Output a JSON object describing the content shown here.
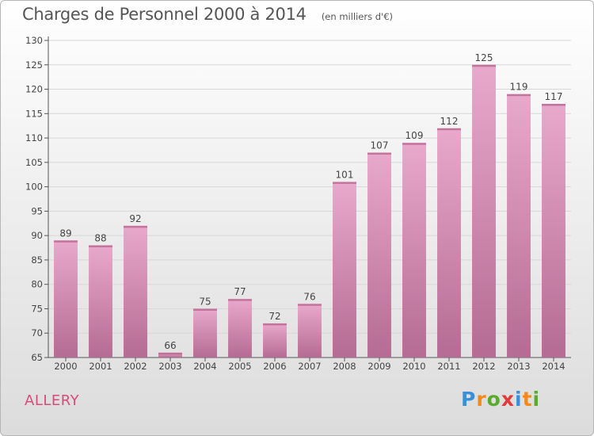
{
  "header": {
    "title": "Charges de Personnel 2000 à 2014",
    "subtitle": "(en milliers d'€)"
  },
  "commune": "ALLERY",
  "logo": {
    "text": "Proxiti",
    "letter_colors": [
      "#3b8fd6",
      "#f08a1c",
      "#5aaa2e",
      "#e23a3a",
      "#3b8fd6",
      "#f08a1c",
      "#5aaa2e"
    ]
  },
  "colors": {
    "bar_top": "#e8a9cc",
    "bar_bottom": "#b56b93",
    "axis": "#555555",
    "grid": "#d7d7d7",
    "commune": "#d94a7b"
  },
  "chart_data": {
    "type": "bar",
    "title": "Charges de Personnel 2000 à 2014",
    "subtitle": "(en milliers d'€)",
    "categories": [
      "2000",
      "2001",
      "2002",
      "2003",
      "2004",
      "2005",
      "2006",
      "2007",
      "2008",
      "2009",
      "2010",
      "2011",
      "2012",
      "2013",
      "2014"
    ],
    "values": [
      89,
      88,
      92,
      66,
      75,
      77,
      72,
      76,
      101,
      107,
      109,
      112,
      125,
      119,
      117
    ],
    "ylim": [
      65,
      130
    ],
    "yticks": [
      65,
      70,
      75,
      80,
      85,
      90,
      95,
      100,
      105,
      110,
      115,
      120,
      125,
      130
    ],
    "grid": true,
    "data_labels": true
  }
}
